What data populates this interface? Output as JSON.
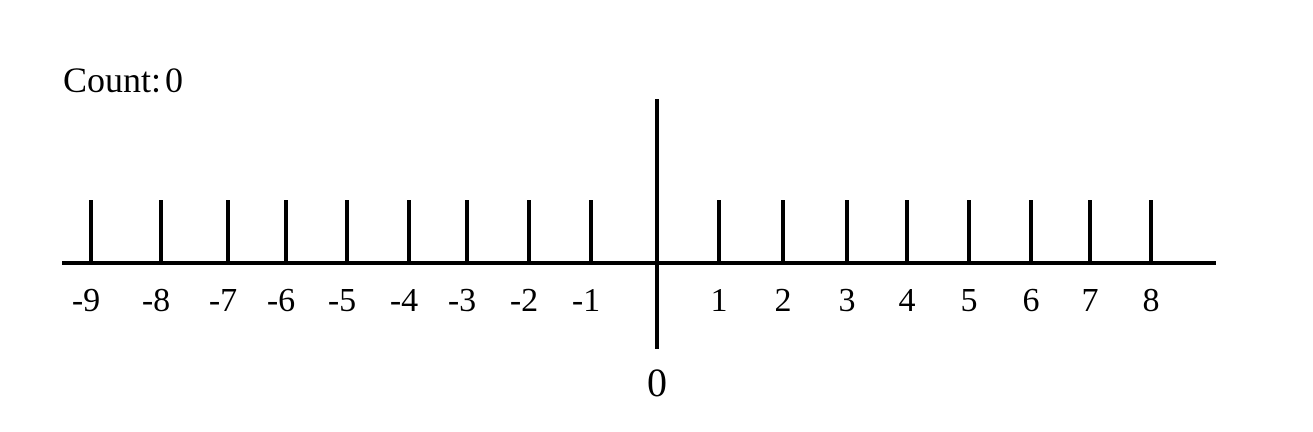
{
  "counter": {
    "label": "Count:",
    "value": "0"
  },
  "number_line": {
    "origin_label": "0",
    "negative_ticks": [
      {
        "value": -9,
        "label": "-9"
      },
      {
        "value": -8,
        "label": "-8"
      },
      {
        "value": -7,
        "label": "-7"
      },
      {
        "value": -6,
        "label": "-6"
      },
      {
        "value": -5,
        "label": "-5"
      },
      {
        "value": -4,
        "label": "-4"
      },
      {
        "value": -3,
        "label": "-3"
      },
      {
        "value": -2,
        "label": "-2"
      },
      {
        "value": -1,
        "label": "-1"
      }
    ],
    "positive_ticks": [
      {
        "value": 1,
        "label": "1"
      },
      {
        "value": 2,
        "label": "2"
      },
      {
        "value": 3,
        "label": "3"
      },
      {
        "value": 4,
        "label": "4"
      },
      {
        "value": 5,
        "label": "5"
      },
      {
        "value": 6,
        "label": "6"
      },
      {
        "value": 7,
        "label": "7"
      },
      {
        "value": 8,
        "label": "8"
      }
    ],
    "line_color": "#000000"
  }
}
